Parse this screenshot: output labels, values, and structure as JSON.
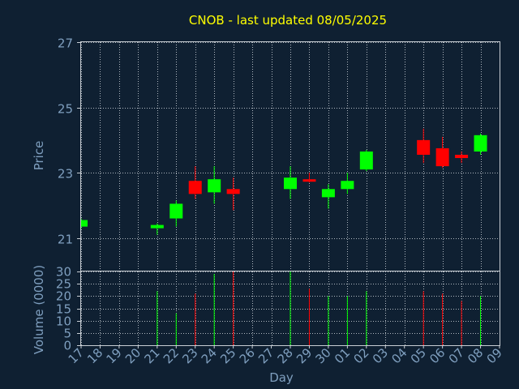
{
  "chart_data": {
    "type": "candlestick",
    "title": "CNOB - last updated 08/05/2025",
    "xlabel": "Day",
    "price_panel": {
      "ylabel": "Price",
      "ylim": [
        20,
        27
      ],
      "yticks": [
        "21",
        "23",
        "25",
        "27"
      ]
    },
    "volume_panel": {
      "ylabel": "Volume (0000)",
      "ylim": [
        0,
        30
      ],
      "yticks": [
        "0",
        "5",
        "10",
        "15",
        "20",
        "25",
        "30"
      ]
    },
    "days": [
      "17",
      "18",
      "19",
      "20",
      "21",
      "22",
      "23",
      "24",
      "25",
      "26",
      "27",
      "28",
      "29",
      "30",
      "01",
      "02",
      "03",
      "04",
      "05",
      "06",
      "07",
      "08",
      "09"
    ],
    "up_color": "#00ff00",
    "down_color": "#ff0000",
    "candles": [
      {
        "day": "17",
        "open": 21.35,
        "high": 21.6,
        "low": 21.3,
        "close": 21.55,
        "volume": 0
      },
      {
        "day": "21",
        "open": 21.3,
        "high": 21.45,
        "low": 21.1,
        "close": 21.4,
        "volume": 22
      },
      {
        "day": "22",
        "open": 21.6,
        "high": 22.15,
        "low": 21.35,
        "close": 22.05,
        "volume": 13
      },
      {
        "day": "23",
        "open": 22.75,
        "high": 23.2,
        "low": 22.2,
        "close": 22.35,
        "volume": 21
      },
      {
        "day": "24",
        "open": 22.4,
        "high": 23.2,
        "low": 22.05,
        "close": 22.8,
        "volume": 29
      },
      {
        "day": "25",
        "open": 22.5,
        "high": 22.85,
        "low": 21.85,
        "close": 22.35,
        "volume": 30
      },
      {
        "day": "28",
        "open": 22.5,
        "high": 23.2,
        "low": 22.2,
        "close": 22.85,
        "volume": 30
      },
      {
        "day": "29",
        "open": 22.8,
        "high": 23.0,
        "low": 22.7,
        "close": 22.75,
        "volume": 23
      },
      {
        "day": "30",
        "open": 22.25,
        "high": 22.65,
        "low": 21.9,
        "close": 22.5,
        "volume": 20
      },
      {
        "day": "01",
        "open": 22.5,
        "high": 23.0,
        "low": 22.35,
        "close": 22.75,
        "volume": 20
      },
      {
        "day": "02",
        "open": 23.1,
        "high": 23.7,
        "low": 23.05,
        "close": 23.65,
        "volume": 22
      },
      {
        "day": "05",
        "open": 24.0,
        "high": 24.35,
        "low": 23.3,
        "close": 23.55,
        "volume": 22
      },
      {
        "day": "06",
        "open": 23.75,
        "high": 24.1,
        "low": 23.15,
        "close": 23.2,
        "volume": 21
      },
      {
        "day": "07",
        "open": 23.55,
        "high": 23.65,
        "low": 23.3,
        "close": 23.45,
        "volume": 18
      },
      {
        "day": "08",
        "open": 23.65,
        "high": 24.2,
        "low": 23.55,
        "close": 24.15,
        "volume": 20
      }
    ]
  }
}
